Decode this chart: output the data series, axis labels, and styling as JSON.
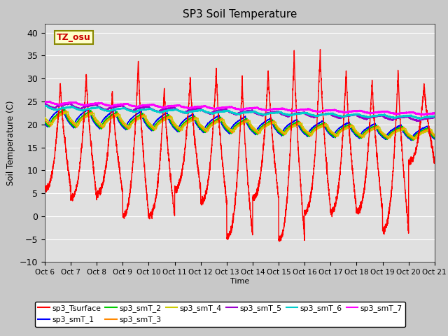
{
  "title": "SP3 Soil Temperature",
  "ylabel": "Soil Temperature (C)",
  "xlabel": "Time",
  "tz_label": "TZ_osu",
  "x_tick_labels": [
    "Oct 6",
    "Oct 7",
    "Oct 8",
    "Oct 9",
    "Oct 10",
    "Oct 11",
    "Oct 12",
    "Oct 13",
    "Oct 14",
    "Oct 15",
    "Oct 16",
    "Oct 17",
    "Oct 18",
    "Oct 19",
    "Oct 20",
    "Oct 21"
  ],
  "ylim": [
    -10,
    42
  ],
  "xlim": [
    0,
    15
  ],
  "yticks": [
    -10,
    -5,
    0,
    5,
    10,
    15,
    20,
    25,
    30,
    35,
    40
  ],
  "series_colors": {
    "sp3_Tsurface": "#FF0000",
    "sp3_smT_1": "#0000FF",
    "sp3_smT_2": "#00CC00",
    "sp3_smT_3": "#FF8800",
    "sp3_smT_4": "#CCCC00",
    "sp3_smT_5": "#9900CC",
    "sp3_smT_6": "#00CCCC",
    "sp3_smT_7": "#FF00FF"
  },
  "fig_facecolor": "#C8C8C8",
  "ax_facecolor": "#E0E0E0",
  "grid_color": "#FFFFFF"
}
